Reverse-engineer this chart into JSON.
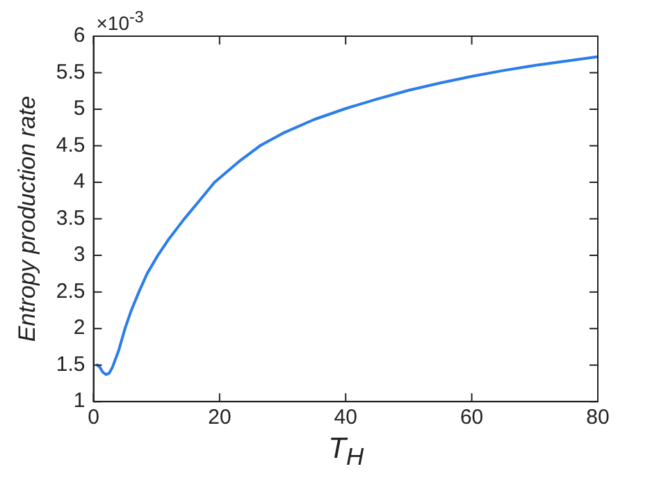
{
  "chart_data": {
    "type": "line",
    "xlabel": "T$_{H}$",
    "ylabel": "Entropy production rate",
    "annotations": [
      "×10$^{-3}$"
    ],
    "x": [
      0.6,
      1,
      1.5,
      2,
      2.5,
      3,
      4,
      5,
      6,
      7.2,
      8.5,
      10.2,
      12,
      14.4,
      17,
      19.2,
      23,
      26.4,
      30,
      35,
      40,
      45,
      50,
      55,
      60,
      65,
      70,
      75,
      80
    ],
    "series": [
      {
        "color": "#2b7de9",
        "values": [
          1.5,
          1.47,
          1.4,
          1.37,
          1.39,
          1.47,
          1.7,
          2.0,
          2.25,
          2.5,
          2.75,
          3.0,
          3.23,
          3.5,
          3.77,
          4.0,
          4.28,
          4.5,
          4.67,
          4.86,
          5.01,
          5.14,
          5.26,
          5.36,
          5.45,
          5.53,
          5.6,
          5.66,
          5.72
        ]
      }
    ],
    "xlim": [
      0,
      80
    ],
    "xticks": [
      0,
      20,
      40,
      60,
      80
    ],
    "ylim": [
      1,
      6
    ],
    "yticks": [
      1,
      1.5,
      2,
      2.5,
      3,
      3.5,
      4,
      4.5,
      5,
      5.5,
      6
    ],
    "grid": false,
    "legend": false,
    "marker": "none",
    "line_style": "solid"
  }
}
